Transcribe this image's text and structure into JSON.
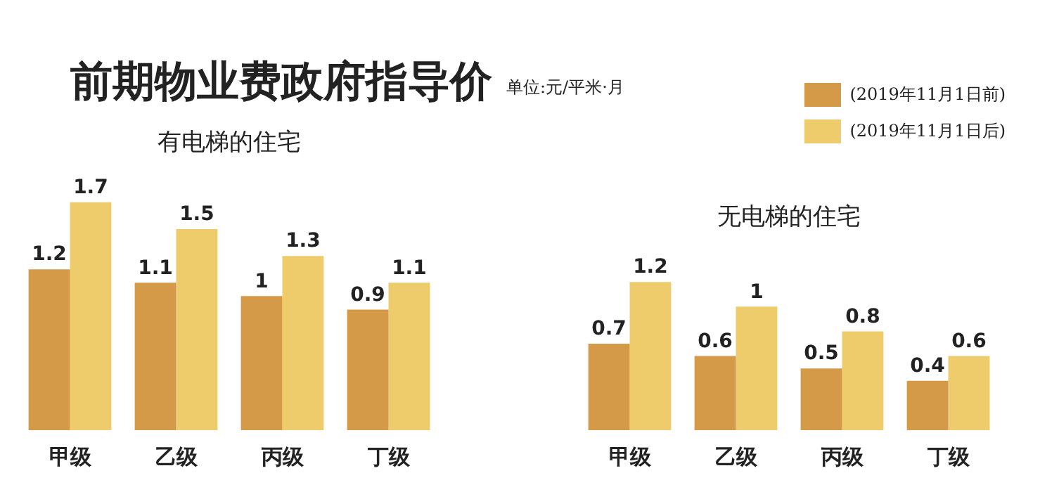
{
  "chart_data": [
    {
      "type": "bar",
      "title": "前期物业费政府指导价",
      "subtitle": "有电梯的住宅",
      "annotations": [
        "单位:元/平米·月"
      ],
      "categories": [
        "甲级",
        "乙级",
        "丙级",
        "丁级"
      ],
      "series": [
        {
          "name": "(2019年11月1日前)",
          "color": "#d49a48",
          "values": [
            1.2,
            1.1,
            1,
            0.9
          ]
        },
        {
          "name": "(2019年11月1日后)",
          "color": "#eecc6c",
          "values": [
            1.7,
            1.5,
            1.3,
            1.1
          ]
        }
      ],
      "data_labels": true,
      "legend": "top right",
      "grid": false
    },
    {
      "type": "bar",
      "title": "无电梯的住宅",
      "categories": [
        "甲级",
        "乙级",
        "丙级",
        "丁级"
      ],
      "series": [
        {
          "color": "#d49a48",
          "values": [
            0.7,
            0.6,
            0.5,
            0.4
          ]
        },
        {
          "color": "#eecc6c",
          "values": [
            1.2,
            1,
            0.8,
            0.6
          ]
        }
      ],
      "data_labels": true,
      "grid": false
    }
  ]
}
